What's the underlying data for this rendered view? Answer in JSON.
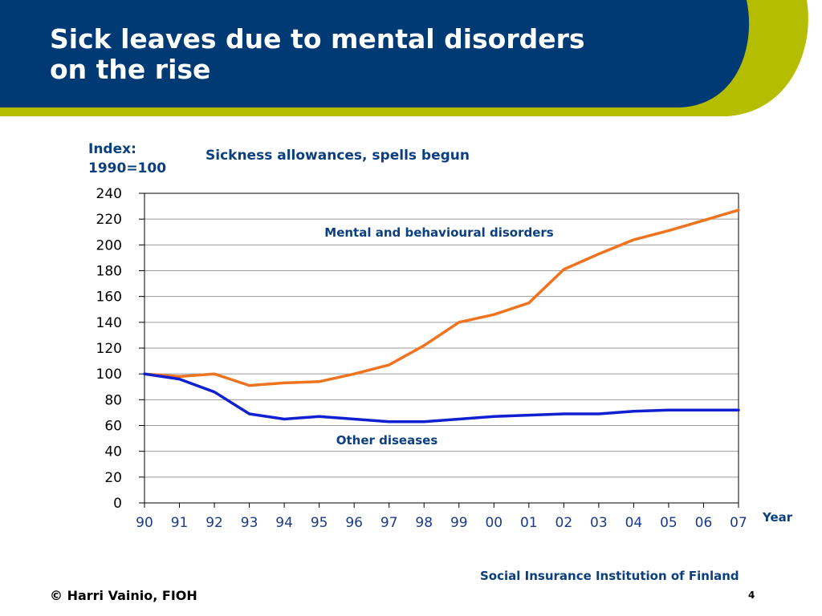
{
  "slide": {
    "title_lines": [
      "Sick leaves due to mental disorders",
      "on the rise"
    ],
    "source": "Social Insurance Institution of Finland",
    "copyright": "© Harri Vainio, FIOH",
    "page_number": "4",
    "colors": {
      "header_blue": "#003a75",
      "accent_green": "#b5bd00",
      "text_blue": "#0b3f7e"
    }
  },
  "chart_data": {
    "type": "line",
    "title": "Sickness allowances, spells begun",
    "ylabel_lines": [
      "Index:",
      "1990=100"
    ],
    "xlabel": "Year",
    "categories": [
      "90",
      "91",
      "92",
      "93",
      "94",
      "95",
      "96",
      "97",
      "98",
      "99",
      "00",
      "01",
      "02",
      "03",
      "04",
      "05",
      "06",
      "07"
    ],
    "ylim": [
      0,
      240
    ],
    "yticks": [
      0,
      20,
      40,
      60,
      80,
      100,
      120,
      140,
      160,
      180,
      200,
      220,
      240
    ],
    "grid": true,
    "series": [
      {
        "name": "Mental and behavioural disorders",
        "color": "#f07320",
        "values": [
          100,
          98,
          100,
          91,
          93,
          94,
          100,
          107,
          122,
          140,
          146,
          155,
          181,
          193,
          204,
          211,
          219,
          227
        ]
      },
      {
        "name": "Other diseases",
        "color": "#1020d0",
        "values": [
          100,
          96,
          86,
          69,
          65,
          67,
          65,
          63,
          63,
          65,
          67,
          68,
          69,
          69,
          71,
          72,
          72,
          72
        ]
      }
    ]
  }
}
